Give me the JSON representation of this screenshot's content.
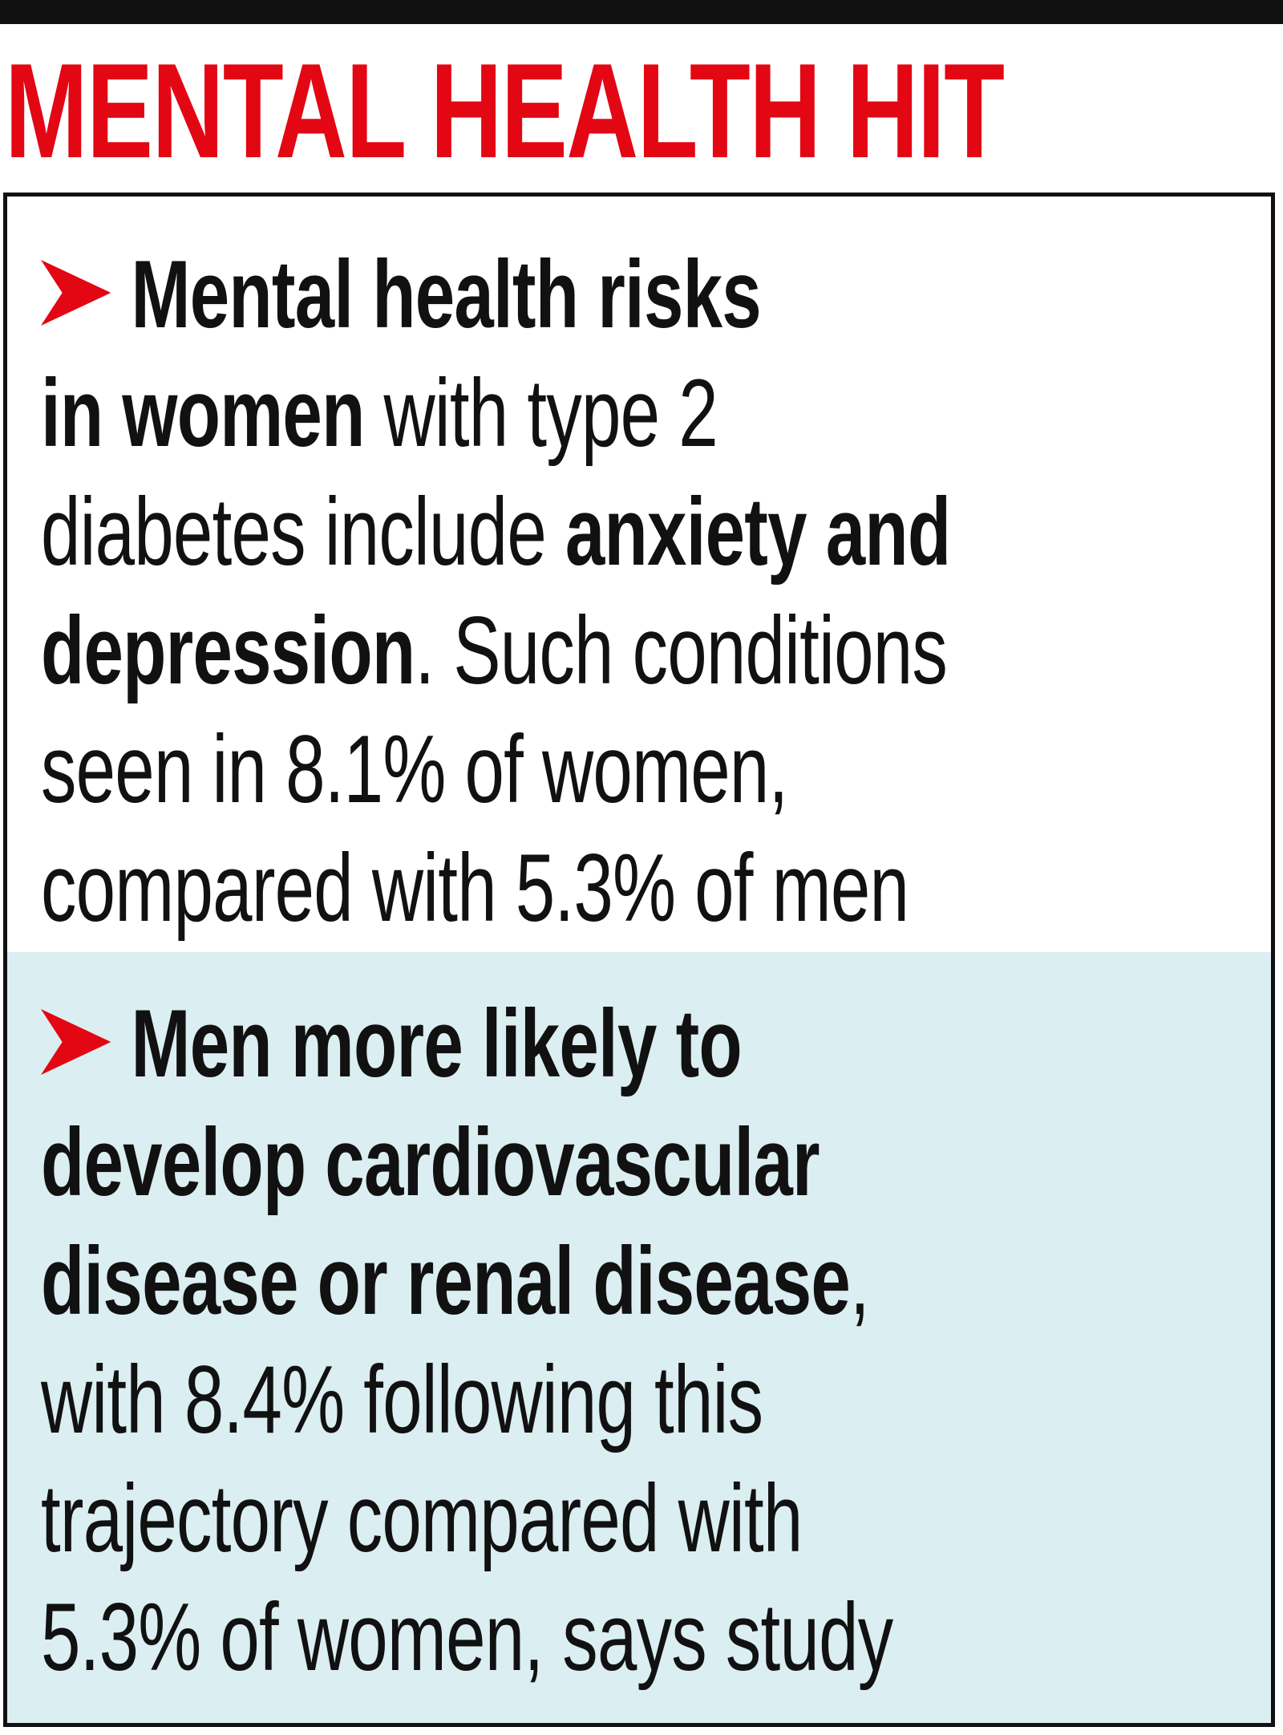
{
  "headline": "MENTAL HEALTH HIT",
  "colors": {
    "headline": "#e30613",
    "arrow": "#e30613",
    "text": "#111111",
    "panel_2_background": "#dbeef1",
    "rule": "#111111"
  },
  "icons": {
    "bullet": "red-chevron-arrow-icon"
  },
  "items": [
    {
      "lines": [
        [
          {
            "text": "Mental health risks",
            "bold": true
          }
        ],
        [
          {
            "text": "in women",
            "bold": true
          },
          {
            "text": " with type 2",
            "bold": false
          }
        ],
        [
          {
            "text": "diabetes include ",
            "bold": false
          },
          {
            "text": "anxiety and",
            "bold": true
          }
        ],
        [
          {
            "text": "depression",
            "bold": true
          },
          {
            "text": ". Such conditions",
            "bold": false
          }
        ],
        [
          {
            "text": "seen in 8.1% of women,",
            "bold": false
          }
        ],
        [
          {
            "text": "compared with 5.3% of men",
            "bold": false
          }
        ]
      ]
    },
    {
      "lines": [
        [
          {
            "text": "Men more likely to",
            "bold": true
          }
        ],
        [
          {
            "text": "develop cardiovascular",
            "bold": true
          }
        ],
        [
          {
            "text": "disease or renal disease",
            "bold": true
          },
          {
            "text": ",",
            "bold": false
          }
        ],
        [
          {
            "text": "with 8.4% following this",
            "bold": false
          }
        ],
        [
          {
            "text": "trajectory compared with",
            "bold": false
          }
        ],
        [
          {
            "text": "5.3% of women, says study",
            "bold": false
          }
        ]
      ]
    }
  ]
}
